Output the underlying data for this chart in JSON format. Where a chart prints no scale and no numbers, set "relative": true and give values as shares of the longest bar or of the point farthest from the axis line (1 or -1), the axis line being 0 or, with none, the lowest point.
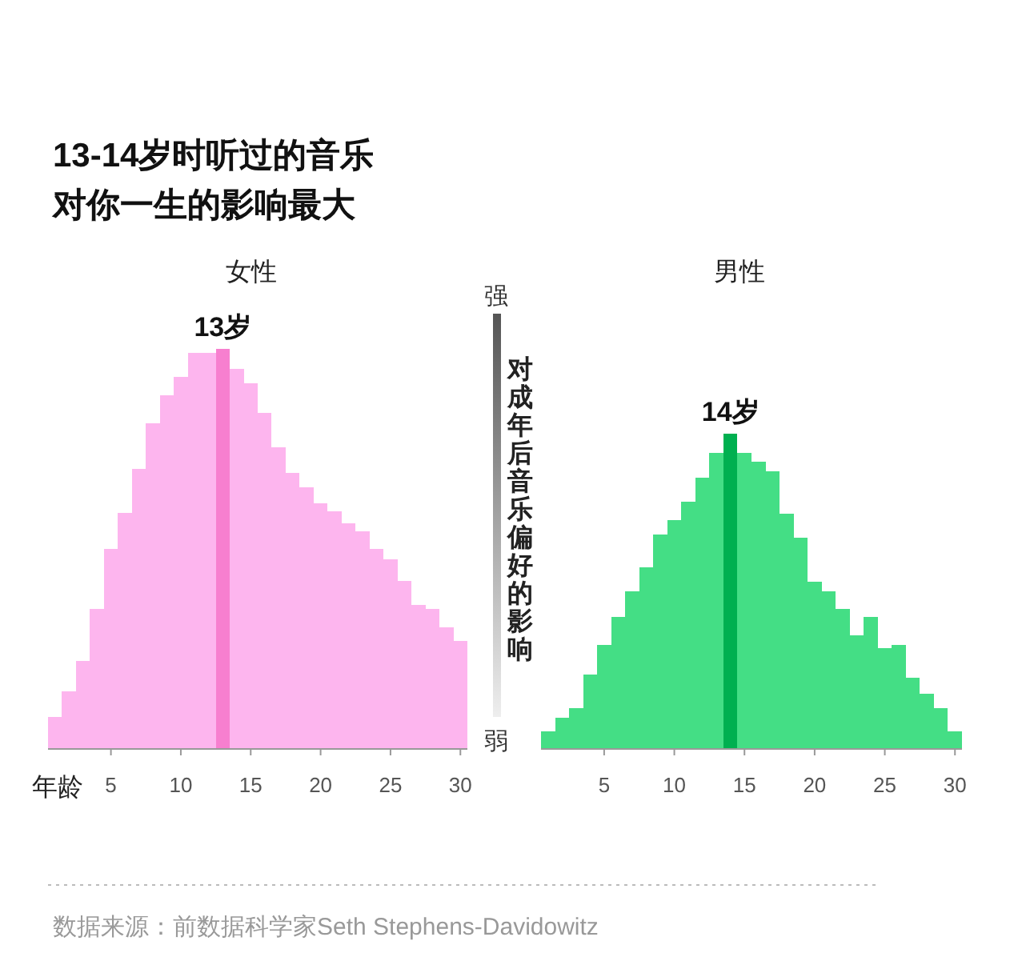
{
  "chart_data": [
    {
      "type": "bar",
      "title": "女性",
      "xlabel": "年龄",
      "relative": true,
      "categories": [
        null,
        null,
        null,
        null,
        "5",
        null,
        null,
        null,
        null,
        "10",
        null,
        null,
        null,
        null,
        "15",
        null,
        null,
        null,
        null,
        "20",
        null,
        null,
        null,
        null,
        "25",
        null,
        null,
        null,
        null,
        "30"
      ],
      "values": [
        0.08,
        0.145,
        0.22,
        0.35,
        0.5,
        0.59,
        0.7,
        0.815,
        0.885,
        0.93,
        0.99,
        0.99,
        1,
        0.95,
        0.915,
        0.84,
        0.755,
        0.69,
        0.655,
        0.615,
        0.595,
        0.565,
        0.545,
        0.5,
        0.475,
        0.42,
        0.36,
        0.35,
        0.305,
        0.27
      ],
      "colors": [
        "#fdb5ee",
        "#fdb5ee",
        "#fdb5ee",
        "#fdb5ee",
        "#fdb5ee",
        "#fdb5ee",
        "#fdb5ee",
        "#fdb5ee",
        "#fdb5ee",
        "#fdb5ee",
        "#fdb5ee",
        "#fdb5ee",
        "#f77fcf",
        "#fdb5ee",
        "#fdb5ee",
        "#fdb5ee",
        "#fdb5ee",
        "#fdb5ee",
        "#fdb5ee",
        "#fdb5ee",
        "#fdb5ee",
        "#fdb5ee",
        "#fdb5ee",
        "#fdb5ee",
        "#fdb5ee",
        "#fdb5ee",
        "#fdb5ee",
        "#fdb5ee",
        "#fdb5ee",
        "#fdb5ee"
      ],
      "annotations": [
        "13-14岁时听过的音乐",
        "对你一生的影响最大",
        "数据来源：前数据科学家Seth Stephens-Davidowitz",
        "13岁"
      ]
    },
    {
      "type": "bar",
      "title": "男性",
      "ylabel": "对成年后音乐偏好的影响",
      "relative": true,
      "categories": [
        null,
        null,
        null,
        null,
        "5",
        null,
        null,
        null,
        null,
        "10",
        null,
        null,
        null,
        null,
        "15",
        null,
        null,
        null,
        null,
        "20",
        null,
        null,
        null,
        null,
        "25",
        null,
        null,
        null,
        null,
        "30"
      ],
      "values": [
        0.055,
        0.1,
        0.13,
        0.235,
        0.33,
        0.42,
        0.5,
        0.575,
        0.68,
        0.725,
        0.785,
        0.86,
        0.94,
        1,
        0.94,
        0.91,
        0.88,
        0.745,
        0.67,
        0.53,
        0.5,
        0.445,
        0.36,
        0.42,
        0.32,
        0.33,
        0.225,
        0.175,
        0.13,
        0.055
      ],
      "colors": [
        "#44de85",
        "#44de85",
        "#44de85",
        "#44de85",
        "#44de85",
        "#44de85",
        "#44de85",
        "#44de85",
        "#44de85",
        "#44de85",
        "#44de85",
        "#44de85",
        "#44de85",
        "#00b050",
        "#44de85",
        "#44de85",
        "#44de85",
        "#44de85",
        "#44de85",
        "#44de85",
        "#44de85",
        "#44de85",
        "#44de85",
        "#44de85",
        "#44de85",
        "#44de85",
        "#44de85",
        "#44de85",
        "#44de85",
        "#44de85"
      ],
      "annotations": [
        "强",
        "弱",
        "14岁"
      ]
    }
  ]
}
